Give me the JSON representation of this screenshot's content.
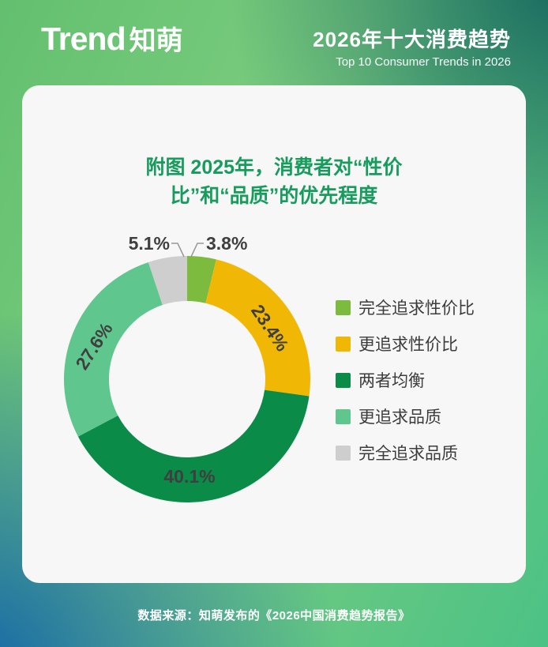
{
  "header": {
    "logo_en": "Trend",
    "logo_cn": "知萌",
    "title_cn": "2026年十大消费趋势",
    "title_en": "Top 10 Consumer Trends in 2026"
  },
  "card": {
    "title_line1": "附图  2025年，消费者对“性价",
    "title_line2": "比”和“品质”的优先程度"
  },
  "chart_data": {
    "type": "pie",
    "subtype": "donut",
    "title": "附图 2025年，消费者对“性价比”和“品质”的优先程度",
    "categories": [
      "完全追求性价比",
      "更追求性价比",
      "两者均衡",
      "更追求品质",
      "完全追求品质"
    ],
    "values": [
      3.8,
      23.4,
      40.1,
      27.6,
      5.1
    ],
    "labels": [
      "3.8%",
      "23.4%",
      "40.1%",
      "27.6%",
      "5.1%"
    ],
    "colors": [
      "#7CBB3E",
      "#F1B705",
      "#0A8B48",
      "#5FC78E",
      "#CECECE"
    ],
    "label_color": "#3F3F3F",
    "legend_position": "right",
    "start_angle": "top",
    "direction": "clockwise"
  },
  "footer": {
    "source": "数据来源：知萌发布的《2026中国消费趋势报告》"
  }
}
